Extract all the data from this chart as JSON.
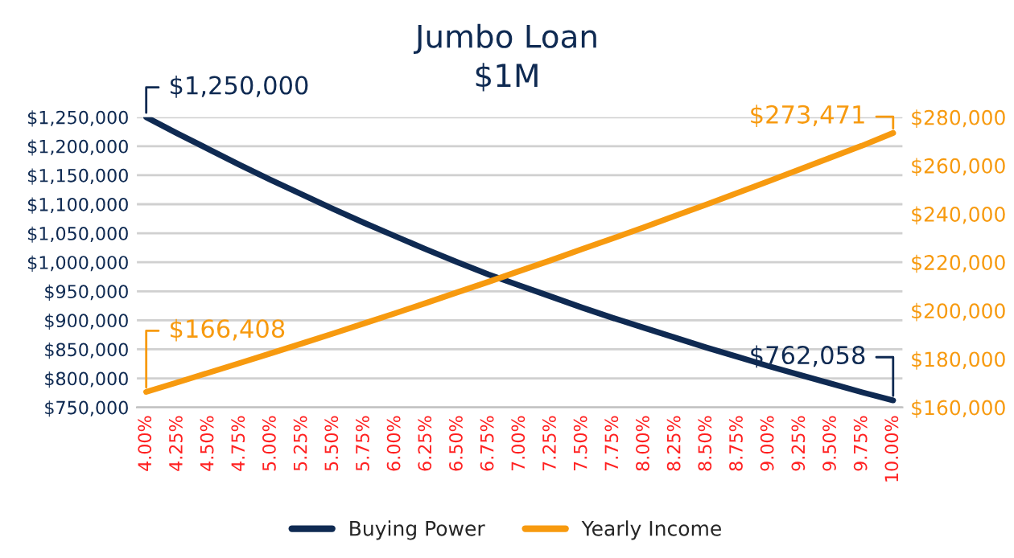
{
  "chart_data": {
    "type": "line",
    "title": "Jumbo Loan",
    "subtitle": "$1M",
    "categories": [
      "4.00%",
      "4.25%",
      "4.50%",
      "4.75%",
      "5.00%",
      "5.25%",
      "5.50%",
      "5.75%",
      "6.00%",
      "6.25%",
      "6.50%",
      "6.75%",
      "7.00%",
      "7.25%",
      "7.50%",
      "7.75%",
      "8.00%",
      "8.25%",
      "8.50%",
      "8.75%",
      "9.00%",
      "9.25%",
      "9.50%",
      "9.75%",
      "10.00%"
    ],
    "series": [
      {
        "name": "Buying Power",
        "color": "#0f2a52",
        "values": [
          1250000,
          1222000,
          1195000,
          1168000,
          1142000,
          1117000,
          1092000,
          1068000,
          1045000,
          1022000,
          1000000,
          979000,
          960000,
          941000,
          922000,
          904000,
          887000,
          870000,
          853000,
          837000,
          821000,
          806000,
          791000,
          776000,
          762058
        ],
        "value_labels": [
          "$1,250,000",
          null,
          null,
          null,
          null,
          null,
          null,
          null,
          null,
          null,
          null,
          null,
          null,
          null,
          null,
          null,
          null,
          null,
          null,
          null,
          null,
          null,
          null,
          null,
          "$762,058"
        ]
      },
      {
        "name": "Yearly Income",
        "color": "#f79a0f",
        "axis": "y2",
        "values": [
          166408,
          170300,
          174300,
          178300,
          182300,
          186400,
          190500,
          194700,
          198900,
          203200,
          207600,
          211900,
          216400,
          220800,
          225400,
          229900,
          234500,
          239200,
          243900,
          248700,
          253500,
          258400,
          263300,
          268200,
          273471
        ],
        "value_labels": [
          "$166,408",
          null,
          null,
          null,
          null,
          null,
          null,
          null,
          null,
          null,
          null,
          null,
          null,
          null,
          null,
          null,
          null,
          null,
          null,
          null,
          null,
          null,
          null,
          null,
          "$273,471"
        ]
      }
    ],
    "ylim": [
      750000,
      1250000
    ],
    "yticks": [
      {
        "value": 750000,
        "label": "$750,000"
      },
      {
        "value": 800000,
        "label": "$800,000"
      },
      {
        "value": 850000,
        "label": "$850,000"
      },
      {
        "value": 900000,
        "label": "$900,000"
      },
      {
        "value": 950000,
        "label": "$950,000"
      },
      {
        "value": 1000000,
        "label": "$1,000,000"
      },
      {
        "value": 1050000,
        "label": "$1,050,000"
      },
      {
        "value": 1100000,
        "label": "$1,100,000"
      },
      {
        "value": 1150000,
        "label": "$1,150,000"
      },
      {
        "value": 1200000,
        "label": "$1,200,000"
      },
      {
        "value": 1250000,
        "label": "$1,250,000"
      }
    ],
    "y2lim": [
      160000,
      280000
    ],
    "y2ticks": [
      {
        "value": 160000,
        "label": "$160,000"
      },
      {
        "value": 180000,
        "label": "$180,000"
      },
      {
        "value": 200000,
        "label": "$200,000"
      },
      {
        "value": 220000,
        "label": "$220,000"
      },
      {
        "value": 240000,
        "label": "$240,000"
      },
      {
        "value": 260000,
        "label": "$260,000"
      },
      {
        "value": 280000,
        "label": "$280,000"
      }
    ],
    "grid": "y",
    "legend": "bottom",
    "marker": "none",
    "line_style": "solid"
  }
}
